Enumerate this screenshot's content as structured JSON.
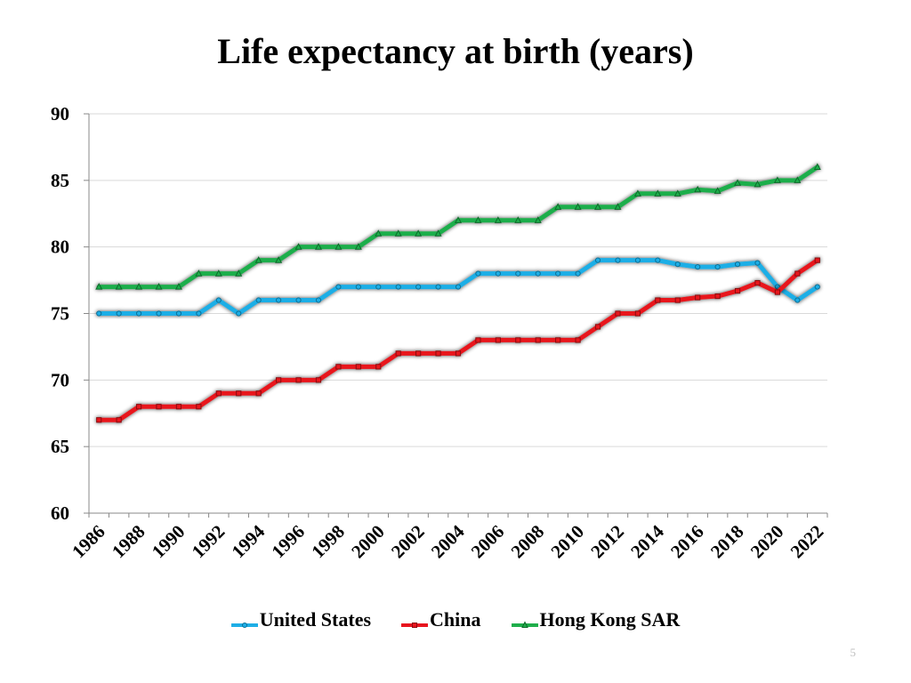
{
  "page_number": "5",
  "colors": {
    "United States": "#1eaee6",
    "China": "#e8141e",
    "Hong Kong SAR": "#1fae4b",
    "grid": "#d9d9d9",
    "axis": "#888888"
  },
  "chart_data": {
    "type": "line",
    "title": "Life expectancy at birth (years)",
    "xlabel": "",
    "ylabel": "",
    "ylim": [
      60,
      90
    ],
    "yticks": [
      60,
      65,
      70,
      75,
      80,
      85,
      90
    ],
    "grid": true,
    "legend_position": "bottom",
    "x": [
      1986,
      1987,
      1988,
      1989,
      1990,
      1991,
      1992,
      1993,
      1994,
      1995,
      1996,
      1997,
      1998,
      1999,
      2000,
      2001,
      2002,
      2003,
      2004,
      2005,
      2006,
      2007,
      2008,
      2009,
      2010,
      2011,
      2012,
      2013,
      2014,
      2015,
      2016,
      2017,
      2018,
      2019,
      2020,
      2021,
      2022
    ],
    "x_tick_labels": [
      "1986",
      "1988",
      "1990",
      "1992",
      "1994",
      "1996",
      "1998",
      "2000",
      "2002",
      "2004",
      "2006",
      "2008",
      "2010",
      "2012",
      "2014",
      "2016",
      "2018",
      "2020",
      "2022"
    ],
    "series": [
      {
        "name": "United States",
        "marker": "circle",
        "values": [
          75,
          75,
          75,
          75,
          75,
          75,
          76,
          75,
          76,
          76,
          76,
          76,
          77,
          77,
          77,
          77,
          77,
          77,
          77,
          78,
          78,
          78,
          78,
          78,
          78,
          79,
          79,
          79,
          79,
          78.7,
          78.5,
          78.5,
          78.7,
          78.8,
          77,
          76,
          77
        ]
      },
      {
        "name": "China",
        "marker": "square",
        "values": [
          67,
          67,
          68,
          68,
          68,
          68,
          69,
          69,
          69,
          70,
          70,
          70,
          71,
          71,
          71,
          72,
          72,
          72,
          72,
          73,
          73,
          73,
          73,
          73,
          73,
          74,
          75,
          75,
          76,
          76,
          76.2,
          76.3,
          76.7,
          77.3,
          76.6,
          78,
          79
        ]
      },
      {
        "name": "Hong Kong SAR",
        "marker": "triangle",
        "values": [
          77,
          77,
          77,
          77,
          77,
          78,
          78,
          78,
          79,
          79,
          80,
          80,
          80,
          80,
          81,
          81,
          81,
          81,
          82,
          82,
          82,
          82,
          82,
          83,
          83,
          83,
          83,
          84,
          84,
          84,
          84.3,
          84.2,
          84.8,
          84.7,
          85,
          85,
          86
        ]
      }
    ]
  }
}
